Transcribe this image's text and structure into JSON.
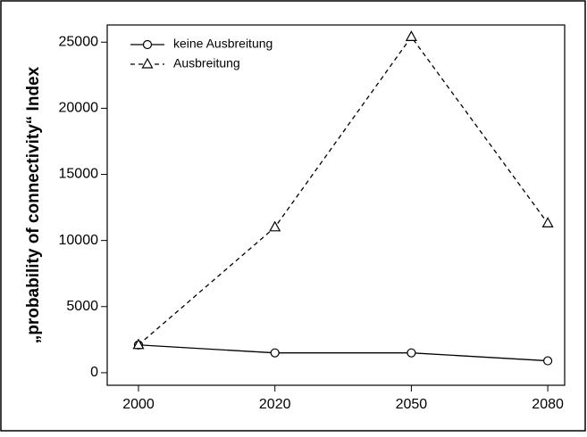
{
  "chart_data": {
    "type": "line",
    "y_label": "„probability of connectivity“ Index",
    "categories": [
      "2000",
      "2020",
      "2050",
      "2080"
    ],
    "series": [
      {
        "name": "keine Ausbreitung",
        "color": "#000000",
        "dash": false,
        "marker": "circle",
        "values": [
          2100,
          1500,
          1500,
          900
        ]
      },
      {
        "name": "Ausbreitung",
        "color": "#000000",
        "dash": true,
        "marker": "triangle",
        "values": [
          2100,
          11000,
          25400,
          11300
        ]
      }
    ],
    "ylim": [
      -950,
      26300
    ],
    "yticks": [
      0,
      5000,
      10000,
      15000,
      20000,
      25000
    ],
    "legend": "top-left"
  }
}
